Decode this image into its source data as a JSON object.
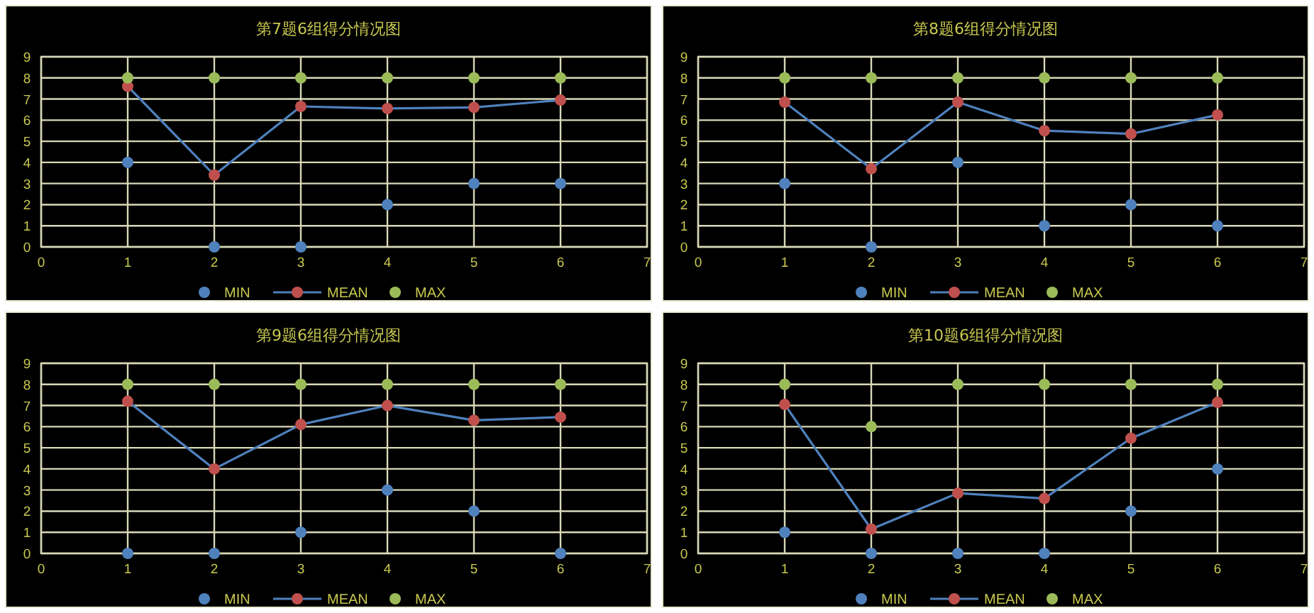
{
  "chart_data": [
    {
      "type": "scatter",
      "title": "第7题6组得分情况图",
      "x": [
        1,
        2,
        3,
        4,
        5,
        6
      ],
      "xlim": [
        0,
        7
      ],
      "xticks": [
        0,
        1,
        2,
        3,
        4,
        5,
        6,
        7
      ],
      "ylim": [
        0,
        9
      ],
      "yticks": [
        0,
        1,
        2,
        3,
        4,
        5,
        6,
        7,
        8,
        9
      ],
      "grid": true,
      "legend": "bottom",
      "marker": "circle",
      "series": [
        {
          "name": "MIN",
          "color": "#4f81bd",
          "values": [
            4,
            0,
            0,
            2,
            3,
            3
          ]
        },
        {
          "name": "MEAN",
          "type": "line",
          "color": "#c0504d",
          "values": [
            7.6,
            3.4,
            6.65,
            6.55,
            6.6,
            6.95
          ]
        },
        {
          "name": "MAX",
          "color": "#9bbb59",
          "values": [
            8,
            8,
            8,
            8,
            8,
            8
          ]
        }
      ]
    },
    {
      "type": "scatter",
      "title": "第8题6组得分情况图",
      "x": [
        1,
        2,
        3,
        4,
        5,
        6
      ],
      "xlim": [
        0,
        7
      ],
      "xticks": [
        0,
        1,
        2,
        3,
        4,
        5,
        6,
        7
      ],
      "ylim": [
        0,
        9
      ],
      "yticks": [
        0,
        1,
        2,
        3,
        4,
        5,
        6,
        7,
        8,
        9
      ],
      "grid": true,
      "legend": "bottom",
      "marker": "circle",
      "series": [
        {
          "name": "MIN",
          "color": "#4f81bd",
          "values": [
            3,
            0,
            4,
            1,
            2,
            1
          ]
        },
        {
          "name": "MEAN",
          "type": "line",
          "color": "#c0504d",
          "values": [
            6.85,
            3.7,
            6.85,
            5.5,
            5.35,
            6.25
          ]
        },
        {
          "name": "MAX",
          "color": "#9bbb59",
          "values": [
            8,
            8,
            8,
            8,
            8,
            8
          ]
        }
      ]
    },
    {
      "type": "scatter",
      "title": "第9题6组得分情况图",
      "x": [
        1,
        2,
        3,
        4,
        5,
        6
      ],
      "xlim": [
        0,
        7
      ],
      "xticks": [
        0,
        1,
        2,
        3,
        4,
        5,
        6,
        7
      ],
      "ylim": [
        0,
        9
      ],
      "yticks": [
        0,
        1,
        2,
        3,
        4,
        5,
        6,
        7,
        8,
        9
      ],
      "grid": true,
      "legend": "bottom",
      "marker": "circle",
      "series": [
        {
          "name": "MIN",
          "color": "#4f81bd",
          "values": [
            0,
            0,
            1,
            3,
            2,
            0
          ]
        },
        {
          "name": "MEAN",
          "type": "line",
          "color": "#c0504d",
          "values": [
            7.2,
            4.0,
            6.1,
            7.0,
            6.3,
            6.45
          ]
        },
        {
          "name": "MAX",
          "color": "#9bbb59",
          "values": [
            8,
            8,
            8,
            8,
            8,
            8
          ]
        }
      ]
    },
    {
      "type": "scatter",
      "title": "第10题6组得分情况图",
      "x": [
        1,
        2,
        3,
        4,
        5,
        6
      ],
      "xlim": [
        0,
        7
      ],
      "xticks": [
        0,
        1,
        2,
        3,
        4,
        5,
        6,
        7
      ],
      "ylim": [
        0,
        9
      ],
      "yticks": [
        0,
        1,
        2,
        3,
        4,
        5,
        6,
        7,
        8,
        9
      ],
      "grid": true,
      "legend": "bottom",
      "marker": "circle",
      "series": [
        {
          "name": "MIN",
          "color": "#4f81bd",
          "values": [
            1,
            0,
            0,
            0,
            2,
            4
          ]
        },
        {
          "name": "MEAN",
          "type": "line",
          "color": "#c0504d",
          "values": [
            7.05,
            1.15,
            2.85,
            2.6,
            5.45,
            7.15
          ]
        },
        {
          "name": "MAX",
          "color": "#9bbb59",
          "values": [
            8,
            6,
            8,
            8,
            8,
            8
          ]
        }
      ]
    }
  ]
}
